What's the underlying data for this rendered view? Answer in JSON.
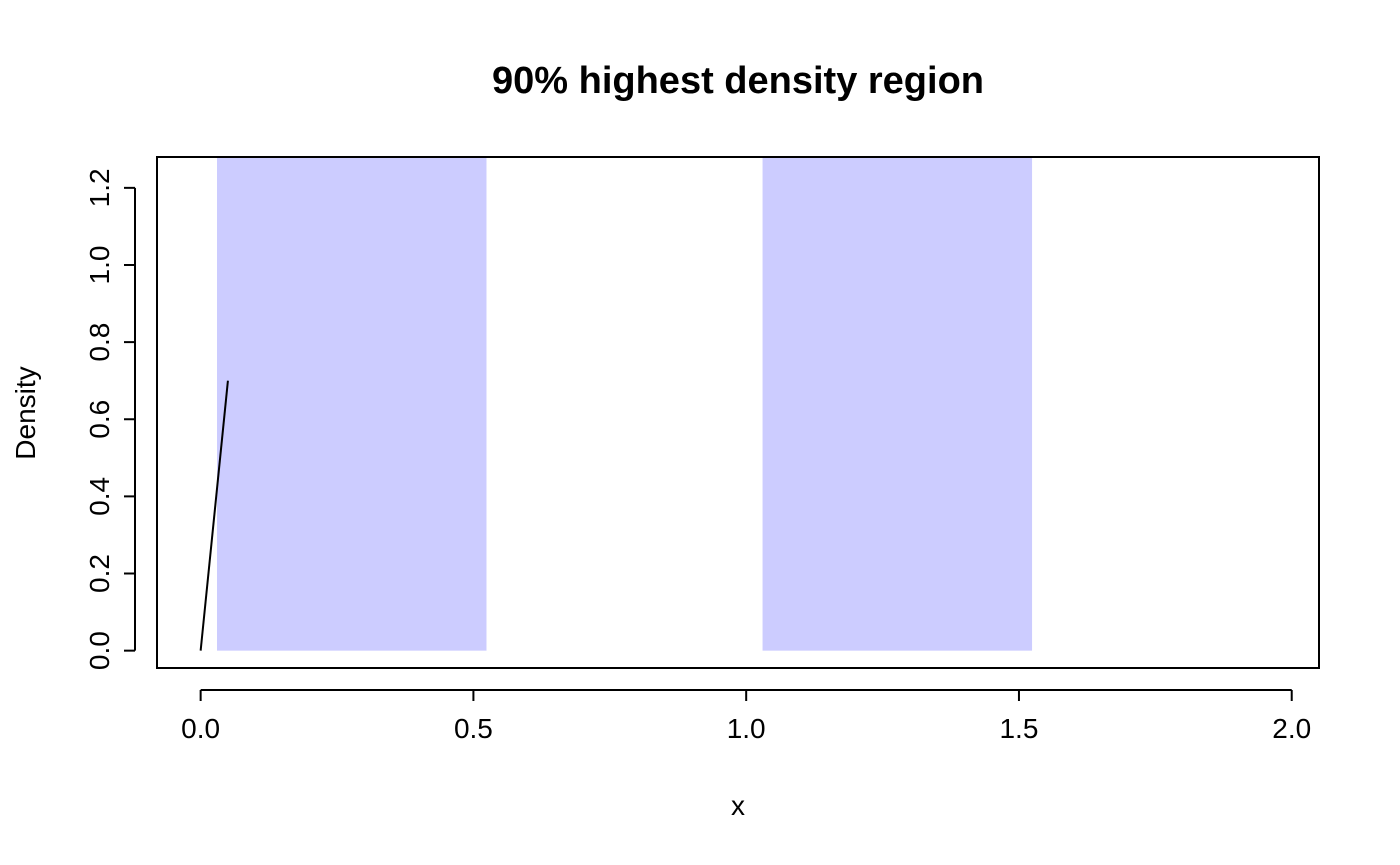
{
  "chart_data": {
    "type": "area",
    "title": "90% highest density region",
    "xlabel": "x",
    "ylabel": "Density",
    "xlim": [
      -0.08,
      2.05
    ],
    "ylim": [
      -0.045,
      1.28
    ],
    "x_ticks": [
      0.0,
      0.5,
      1.0,
      1.5,
      2.0
    ],
    "x_tick_labels": [
      "0.0",
      "0.5",
      "1.0",
      "1.5",
      "2.0"
    ],
    "y_ticks": [
      0.0,
      0.2,
      0.4,
      0.6,
      0.8,
      1.0,
      1.2
    ],
    "y_tick_labels": [
      "0.0",
      "0.2",
      "0.4",
      "0.6",
      "0.8",
      "1.0",
      "1.2"
    ],
    "grid": false,
    "hdr_fill_color": "#ccccff",
    "line_color": "#000000",
    "hdr_regions": [
      {
        "x_start": 0.03,
        "x_end": 0.524
      },
      {
        "x_start": 1.03,
        "x_end": 1.524
      }
    ],
    "series": [
      {
        "values": [
          {
            "x": 0.0,
            "y": 0.0
          },
          {
            "x": 0.05,
            "y": 0.7
          }
        ]
      }
    ]
  }
}
